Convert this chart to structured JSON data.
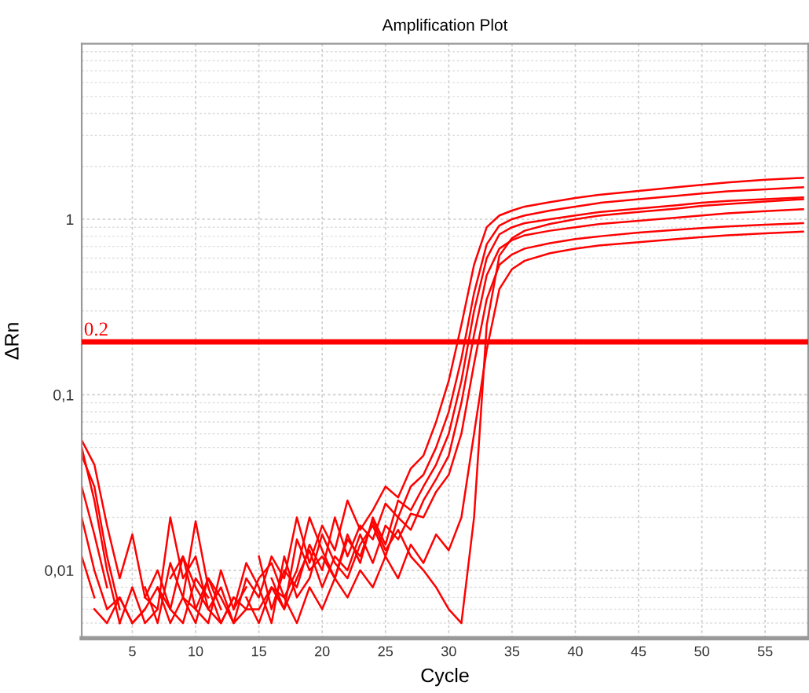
{
  "chart_data": {
    "type": "line",
    "title": "Amplification Plot",
    "xlabel": "Cycle",
    "ylabel": "ΔRn",
    "log": "y",
    "grid": true,
    "marker": "none",
    "line_style": "solid",
    "xlim": [
      1,
      58.4
    ],
    "xticks": [
      5,
      10,
      15,
      20,
      25,
      30,
      35,
      40,
      45,
      50,
      55
    ],
    "ylim": [
      0.0041,
      10
    ],
    "yticks": [
      {
        "value": 0.01,
        "label": "0,01"
      },
      {
        "value": 0.1,
        "label": "0,1"
      },
      {
        "value": 1,
        "label": "1"
      }
    ],
    "ref_lines": [
      {
        "axis": "y",
        "value": 0.2,
        "label": "0.2",
        "color": "#ff0000",
        "line_style": "solid"
      }
    ],
    "x": [
      1,
      2,
      3,
      4,
      5,
      6,
      7,
      8,
      9,
      10,
      11,
      12,
      13,
      14,
      15,
      16,
      17,
      18,
      19,
      20,
      21,
      22,
      23,
      24,
      25,
      26,
      27,
      28,
      29,
      30,
      31,
      32,
      33,
      34,
      35,
      36,
      38,
      40,
      42,
      45,
      48,
      50,
      52,
      55,
      58
    ],
    "series": [
      {
        "color": "#ff0000",
        "values": [
          0.055,
          0.04,
          0.018,
          0.009,
          0.016,
          0.007,
          0.006,
          0.02,
          0.009,
          0.012,
          0.006,
          0.008,
          0.005,
          0.009,
          0.007,
          0.012,
          0.009,
          0.02,
          0.011,
          0.018,
          0.013,
          0.025,
          0.017,
          0.022,
          0.03,
          0.026,
          0.038,
          0.045,
          0.07,
          0.12,
          0.25,
          0.55,
          0.9,
          1.05,
          1.12,
          1.18,
          1.25,
          1.32,
          1.38,
          1.45,
          1.52,
          1.57,
          1.62,
          1.68,
          1.72
        ]
      },
      {
        "color": "#ff0000",
        "values": [
          0.045,
          0.03,
          0.012,
          0.006,
          null,
          0.008,
          0.005,
          0.011,
          0.007,
          0.019,
          0.008,
          0.005,
          0.007,
          null,
          0.012,
          0.006,
          0.01,
          0.008,
          0.014,
          0.01,
          0.02,
          0.012,
          0.018,
          0.015,
          0.024,
          0.02,
          0.03,
          0.035,
          0.05,
          0.08,
          0.16,
          0.38,
          0.72,
          0.92,
          1.0,
          1.05,
          1.12,
          1.18,
          1.24,
          1.3,
          1.36,
          1.4,
          1.44,
          1.48,
          1.52
        ]
      },
      {
        "color": "#ff0000",
        "values": [
          0.03,
          0.016,
          0.008,
          null,
          0.005,
          0.006,
          null,
          0.009,
          0.012,
          0.006,
          0.005,
          0.01,
          0.006,
          0.008,
          null,
          0.009,
          0.006,
          0.015,
          0.01,
          0.012,
          0.009,
          0.016,
          0.011,
          0.02,
          0.014,
          0.025,
          0.022,
          0.03,
          0.04,
          0.06,
          0.12,
          0.3,
          0.6,
          0.82,
          0.9,
          0.95,
          1.0,
          1.05,
          1.1,
          1.15,
          1.2,
          1.24,
          1.27,
          1.3,
          1.33
        ]
      },
      {
        "color": "#ff0000",
        "values": [
          0.02,
          0.01,
          0.006,
          0.007,
          0.005,
          null,
          0.008,
          0.006,
          0.005,
          0.009,
          0.007,
          null,
          0.006,
          0.011,
          0.008,
          0.005,
          0.012,
          0.007,
          0.009,
          0.016,
          0.011,
          0.009,
          0.014,
          0.018,
          0.012,
          0.02,
          0.017,
          0.025,
          0.033,
          0.045,
          0.09,
          0.22,
          0.48,
          0.68,
          0.76,
          0.81,
          0.86,
          0.9,
          0.94,
          0.98,
          1.02,
          1.05,
          1.08,
          1.11,
          1.14
        ]
      },
      {
        "color": "#ff0000",
        "values": [
          0.012,
          0.007,
          null,
          0.005,
          0.008,
          0.005,
          0.006,
          null,
          0.007,
          0.005,
          0.009,
          0.006,
          null,
          0.007,
          0.005,
          0.008,
          0.006,
          0.009,
          0.013,
          0.008,
          0.012,
          0.01,
          0.016,
          0.011,
          0.018,
          0.015,
          0.021,
          0.02,
          0.028,
          0.035,
          0.06,
          0.15,
          0.35,
          0.55,
          0.63,
          0.68,
          0.73,
          0.77,
          0.8,
          0.84,
          0.87,
          0.89,
          0.91,
          0.93,
          0.95
        ]
      },
      {
        "color": "#ff0000",
        "values": [
          null,
          0.006,
          0.005,
          0.007,
          0.005,
          0.006,
          0.008,
          0.005,
          0.007,
          0.006,
          0.009,
          0.007,
          0.005,
          0.006,
          0.006,
          0.008,
          0.007,
          0.005,
          0.008,
          0.006,
          0.009,
          0.007,
          0.01,
          0.008,
          0.012,
          0.009,
          0.014,
          0.011,
          0.016,
          0.013,
          0.02,
          0.06,
          0.18,
          0.4,
          0.52,
          0.58,
          0.64,
          0.68,
          0.71,
          0.74,
          0.77,
          0.79,
          0.81,
          0.83,
          0.85
        ]
      },
      {
        "color": "#ff0000",
        "values": [
          0.05,
          0.025,
          0.01,
          0.005,
          null,
          0.007,
          0.01,
          0.006,
          0.012,
          0.008,
          0.006,
          0.005,
          0.007,
          0.006,
          0.009,
          0.011,
          0.007,
          0.01,
          0.02,
          0.013,
          0.009,
          0.015,
          0.012,
          0.019,
          0.013,
          0.017,
          0.012,
          0.01,
          0.008,
          0.006,
          0.005,
          0.02,
          0.25,
          0.62,
          0.78,
          0.86,
          0.94,
          1.0,
          1.05,
          1.1,
          1.15,
          1.19,
          1.22,
          1.26,
          1.3
        ]
      }
    ]
  }
}
